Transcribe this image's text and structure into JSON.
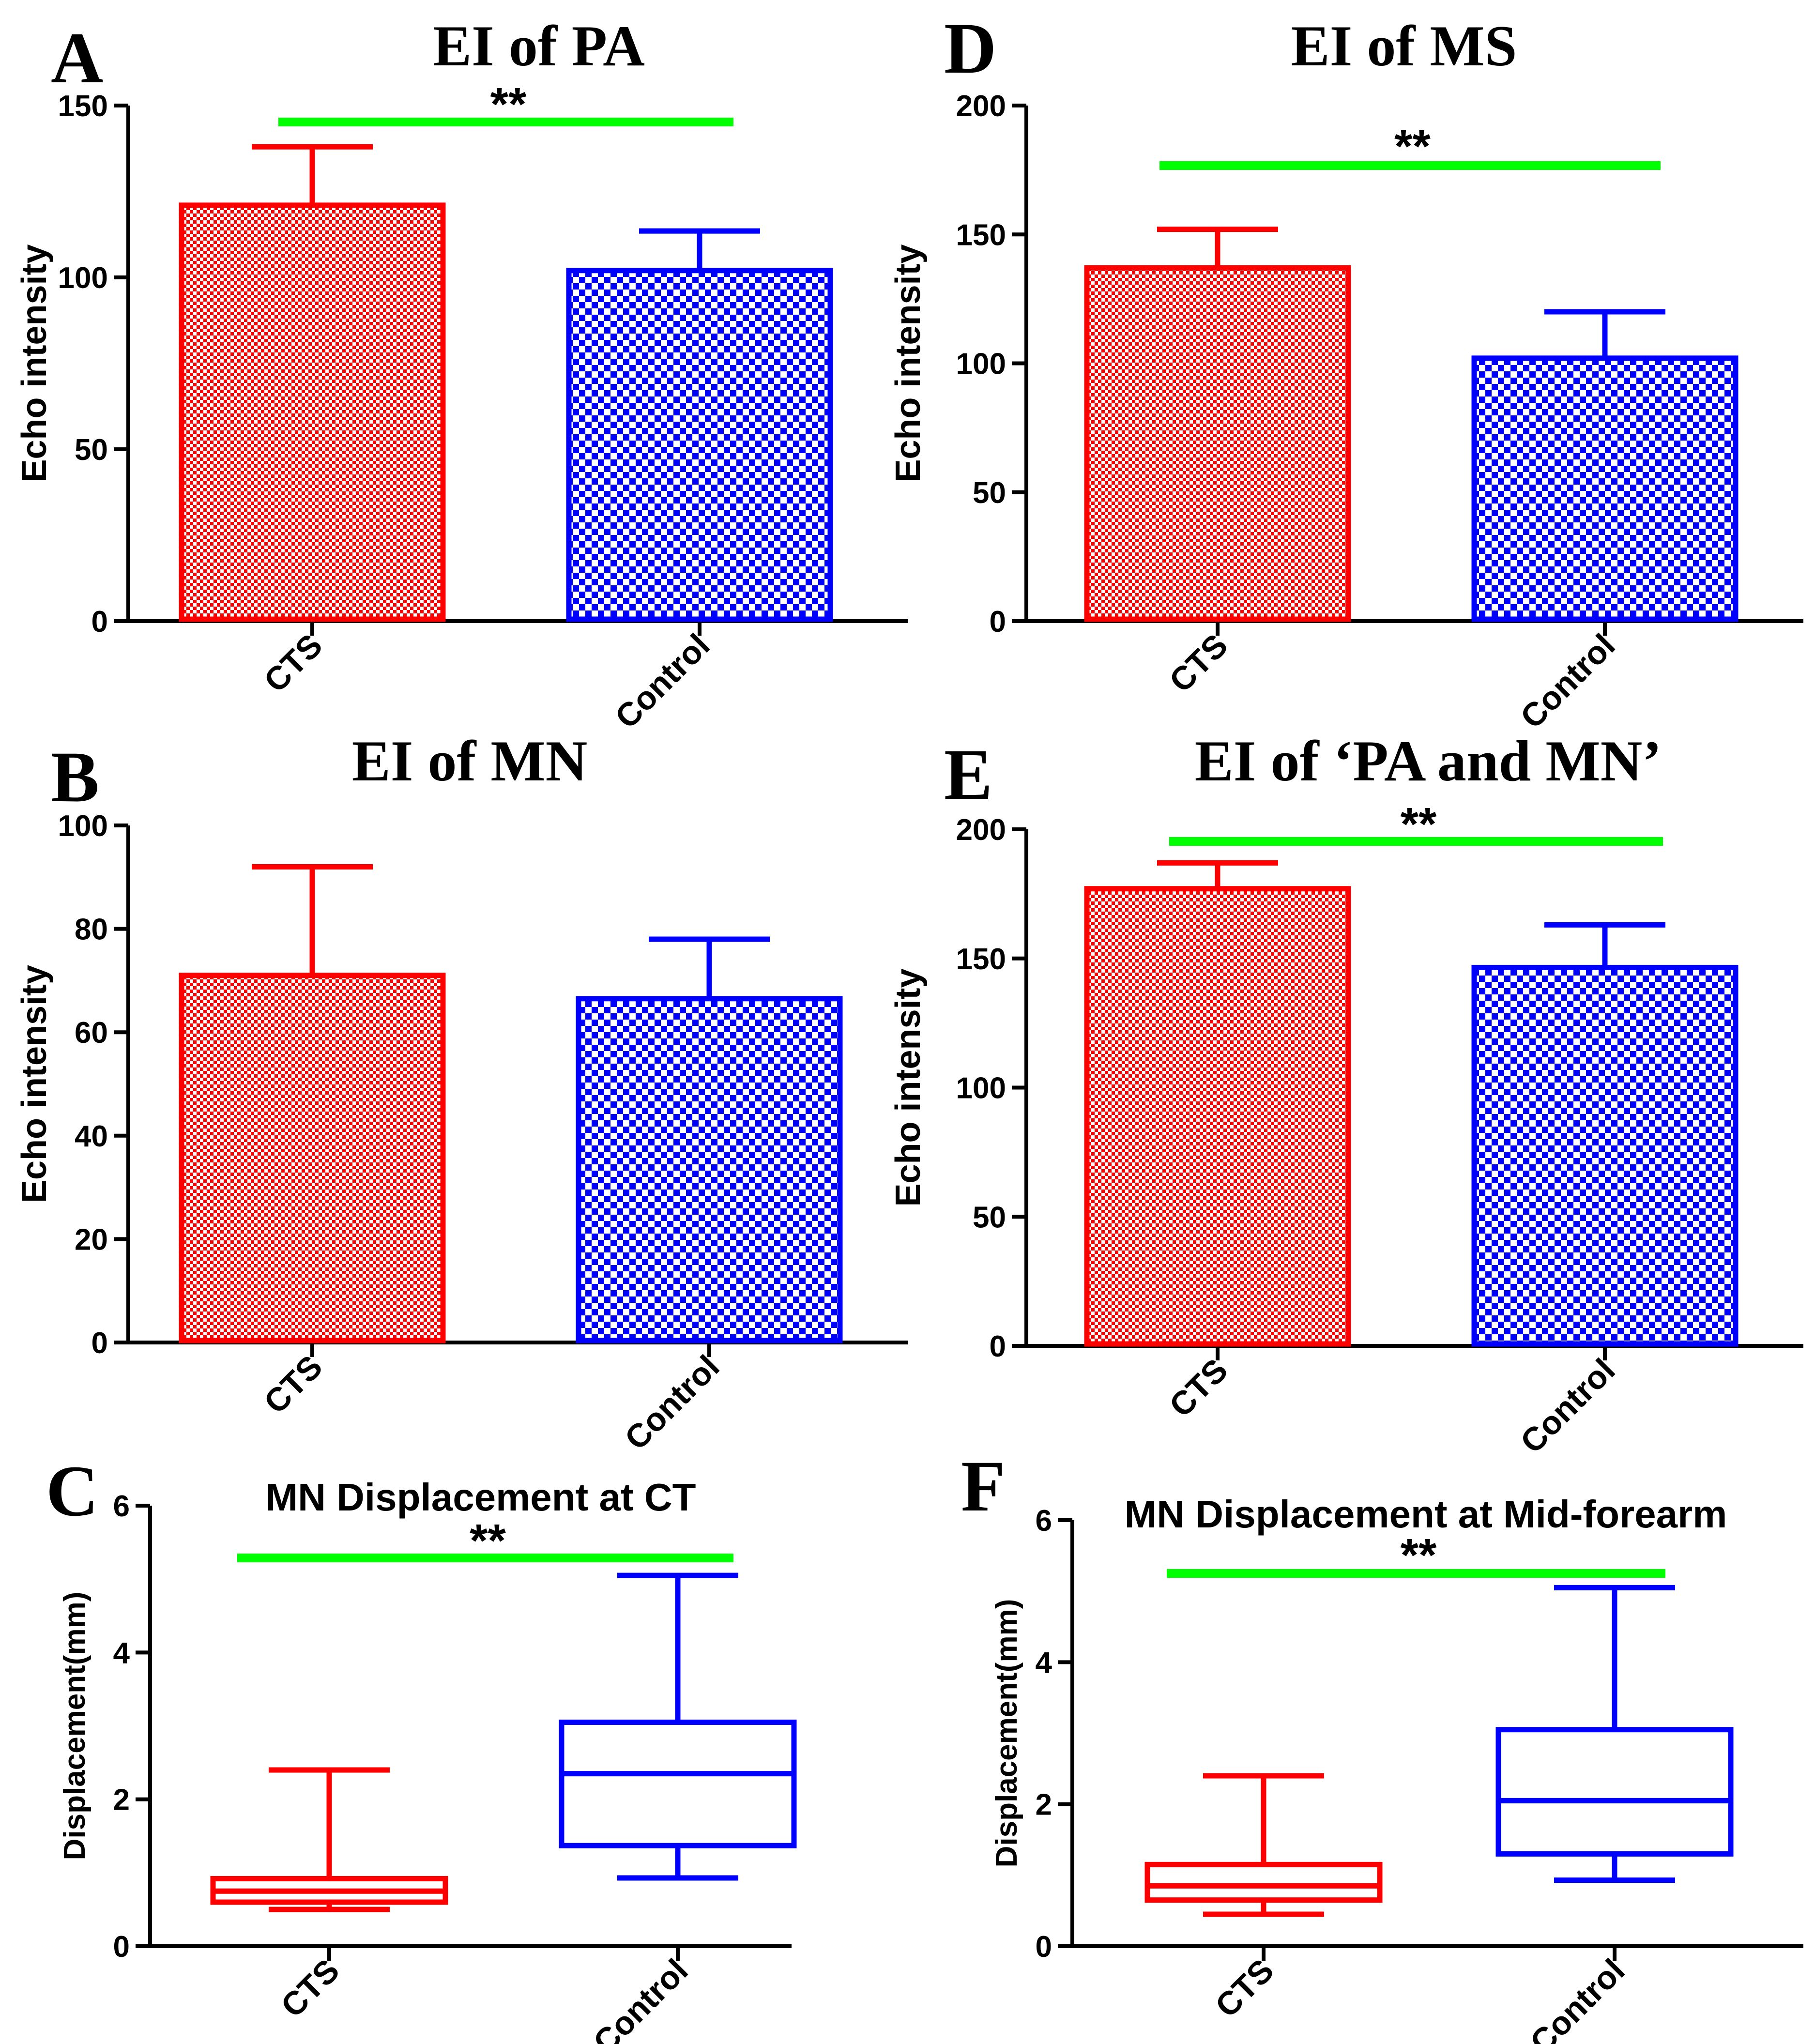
{
  "colors": {
    "cts": "#ff0000",
    "control": "#0000ff",
    "significance": "#00ff00",
    "axis": "#000000"
  },
  "chart_data": [
    {
      "panel": "A",
      "type": "bar",
      "title": "EI of PA",
      "ylabel": "Echo intensity",
      "xlabel": "",
      "ylim": [
        0,
        150
      ],
      "yticks": [
        0,
        50,
        100,
        150
      ],
      "categories": [
        "CTS",
        "Control"
      ],
      "values": [
        121,
        102
      ],
      "error_upper": [
        138,
        113.5
      ],
      "significance": "**"
    },
    {
      "panel": "B",
      "type": "bar",
      "title": "EI of MN",
      "ylabel": "Echo intensity",
      "xlabel": "",
      "ylim": [
        0,
        100
      ],
      "yticks": [
        0,
        20,
        40,
        60,
        80,
        100
      ],
      "categories": [
        "CTS",
        "Control"
      ],
      "values": [
        71,
        66.5
      ],
      "error_upper": [
        92,
        78
      ],
      "significance": ""
    },
    {
      "panel": "C",
      "type": "box",
      "title": "MN Displacement at CT",
      "ylabel": "Displacement(mm)",
      "xlabel": "",
      "ylim": [
        0,
        6
      ],
      "yticks": [
        0,
        2,
        4,
        6
      ],
      "categories": [
        "CTS",
        "Control"
      ],
      "boxes": [
        {
          "min": 0.5,
          "q1": 0.6,
          "median": 0.75,
          "q3": 0.92,
          "max": 2.4
        },
        {
          "min": 0.93,
          "q1": 1.37,
          "median": 2.35,
          "q3": 3.05,
          "max": 5.05
        }
      ],
      "significance": "**"
    },
    {
      "panel": "D",
      "type": "bar",
      "title": "EI of MS",
      "ylabel": "Echo intensity",
      "xlabel": "",
      "ylim": [
        0,
        200
      ],
      "yticks": [
        0,
        50,
        100,
        150,
        200
      ],
      "categories": [
        "CTS",
        "Control"
      ],
      "values": [
        137,
        102
      ],
      "error_upper": [
        152,
        120
      ],
      "significance": "**"
    },
    {
      "panel": "E",
      "type": "bar",
      "title": "EI of ‘PA and MN’",
      "ylabel": "Echo intensity",
      "xlabel": "",
      "ylim": [
        0,
        200
      ],
      "yticks": [
        0,
        50,
        100,
        150,
        200
      ],
      "categories": [
        "CTS",
        "Control"
      ],
      "values": [
        177,
        146.5
      ],
      "error_upper": [
        187,
        163
      ],
      "significance": "**"
    },
    {
      "panel": "F",
      "type": "box",
      "title": "MN Displacement at Mid-forearm",
      "ylabel": "Displacement(mm)",
      "xlabel": "",
      "ylim": [
        0,
        6
      ],
      "yticks": [
        0,
        2,
        4,
        6
      ],
      "categories": [
        "CTS",
        "Control"
      ],
      "boxes": [
        {
          "min": 0.45,
          "q1": 0.65,
          "median": 0.85,
          "q3": 1.15,
          "max": 2.4
        },
        {
          "min": 0.93,
          "q1": 1.3,
          "median": 2.05,
          "q3": 3.05,
          "max": 5.05
        }
      ],
      "significance": "**"
    }
  ]
}
